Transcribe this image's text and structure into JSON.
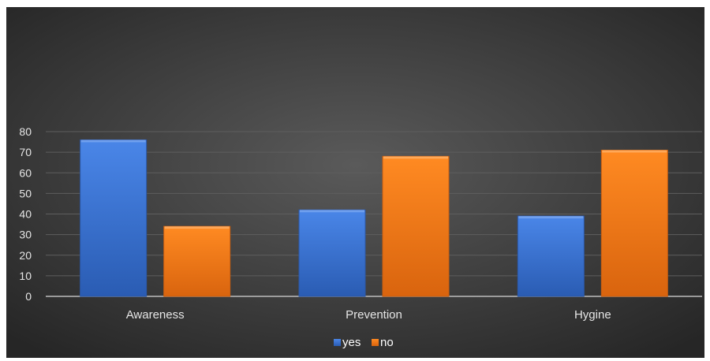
{
  "chart_data": {
    "type": "bar",
    "categories": [
      "Awareness",
      "Prevention",
      "Hygine"
    ],
    "series": [
      {
        "name": "yes",
        "values": [
          76,
          42,
          39
        ],
        "color": "#3f76d6"
      },
      {
        "name": "no",
        "values": [
          34,
          68,
          71
        ],
        "color": "#f47b1c"
      }
    ],
    "ylim": [
      0,
      80
    ],
    "yticks": [
      0,
      10,
      20,
      30,
      40,
      50,
      60,
      70,
      80
    ],
    "grid": true,
    "legend": "bottom-center",
    "background": "#3a3a3a"
  }
}
